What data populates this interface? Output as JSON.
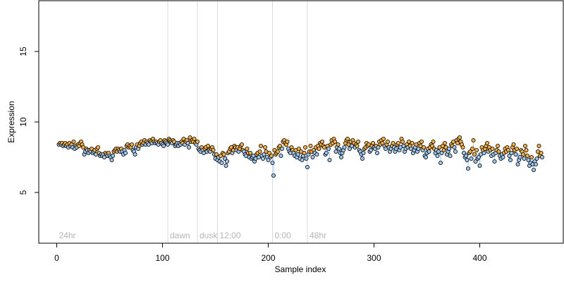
{
  "chart_data": {
    "type": "scatter",
    "title": "",
    "xlabel": "Sample index",
    "ylabel": "Expression",
    "xlim": [
      -17,
      479
    ],
    "ylim": [
      1.4,
      18.6
    ],
    "xticks": [
      0,
      100,
      200,
      300,
      400
    ],
    "yticks": [
      5,
      10,
      15
    ],
    "grid": false,
    "legend": "none",
    "annotations": [
      {
        "label": "24hr",
        "x": 0,
        "line": false
      },
      {
        "label": "dawn",
        "x": 105,
        "line": true
      },
      {
        "label": "dusk",
        "x": 133,
        "line": true
      },
      {
        "label": "12:00",
        "x": 152,
        "line": true
      },
      {
        "label": "0:00",
        "x": 204,
        "line": true
      },
      {
        "label": "48hr",
        "x": 237,
        "line": true
      }
    ],
    "colors": {
      "axis": "#000000",
      "annotation_text": "#b5b5b5",
      "annotation_line": "#d9d9d9",
      "positive_fill": "#f5b041",
      "negative_fill": "#9ec8f0",
      "positive_stem": "#f5c17a",
      "negative_stem": "#9ec8f0",
      "point_stroke": "#000000"
    },
    "series": [
      {
        "baseline_note": "stems drawn from local smoothed mean to each point",
        "x_start": 2,
        "x_step": 1,
        "values": [
          8.4,
          8.5,
          8.4,
          8.5,
          8.3,
          8.4,
          8.5,
          8.3,
          8.4,
          8.2,
          8.5,
          8.3,
          8.4,
          8.2,
          8.6,
          8.1,
          8.3,
          8.2,
          8.4,
          8.3,
          8.5,
          8.6,
          8.4,
          8.2,
          7.7,
          7.9,
          8.1,
          8.0,
          7.8,
          8.0,
          7.9,
          8.1,
          7.8,
          7.9,
          8.0,
          7.7,
          8.1,
          8.2,
          7.8,
          7.6,
          7.7,
          7.6,
          7.7,
          7.5,
          7.8,
          7.7,
          7.6,
          7.8,
          7.6,
          7.5,
          7.3,
          7.6,
          7.9,
          8.0,
          8.1,
          7.9,
          8.1,
          8.0,
          7.9,
          8.1,
          7.9,
          7.7,
          8.0,
          7.8,
          8.3,
          8.4,
          8.2,
          8.3,
          8.2,
          8.4,
          8.0,
          7.9,
          7.7,
          8.2,
          8.4,
          8.1,
          8.3,
          8.5,
          8.6,
          8.4,
          8.5,
          8.7,
          8.4,
          8.6,
          8.5,
          8.4,
          8.7,
          8.6,
          8.5,
          8.8,
          8.6,
          8.5,
          8.6,
          8.5,
          8.4,
          8.6,
          8.7,
          8.5,
          8.4,
          8.3,
          8.7,
          8.6,
          8.5,
          8.4,
          8.8,
          8.7,
          8.6,
          8.5,
          8.7,
          8.6,
          8.3,
          8.4,
          8.5,
          8.3,
          8.5,
          8.4,
          8.6,
          8.5,
          8.8,
          8.4,
          8.6,
          8.7,
          8.5,
          8.2,
          8.9,
          8.6,
          8.7,
          8.6,
          8.8,
          8.5,
          8.4,
          8.6,
          8.1,
          8.0,
          7.9,
          8.2,
          8.0,
          7.8,
          8.1,
          8.2,
          7.9,
          8.3,
          8.0,
          7.9,
          8.1,
          8.2,
          8.0,
          7.7,
          7.4,
          7.7,
          7.3,
          7.5,
          7.2,
          7.6,
          7.1,
          7.8,
          7.7,
          7.4,
          6.9,
          7.2,
          7.8,
          7.9,
          8.1,
          8.2,
          7.8,
          8.0,
          8.3,
          8.2,
          8.0,
          8.2,
          7.9,
          8.1,
          8.3,
          8.4,
          8.0,
          7.9,
          7.7,
          7.6,
          8.1,
          7.8,
          7.5,
          7.8,
          7.4,
          7.5,
          7.6,
          7.2,
          7.4,
          7.7,
          7.8,
          7.5,
          7.9,
          8.3,
          7.6,
          7.4,
          7.7,
          8.2,
          7.9,
          7.5,
          7.3,
          7.8,
          7.5,
          7.6,
          7.1,
          6.2,
          8.0,
          7.7,
          7.8,
          7.9,
          8.2,
          8.3,
          7.6,
          8.1,
          8.6,
          8.7,
          8.5,
          8.4,
          8.6,
          8.1,
          7.9,
          7.8,
          8.2,
          8.0,
          7.8,
          7.6,
          8.0,
          7.5,
          7.7,
          8.1,
          7.4,
          7.9,
          7.3,
          7.6,
          7.8,
          8.2,
          7.4,
          6.8,
          7.7,
          7.9,
          8.3,
          7.9,
          7.5,
          8.0,
          7.8,
          8.2,
          7.7,
          8.3,
          8.1,
          8.5,
          8.4,
          8.6,
          8.3,
          8.2,
          7.7,
          7.8,
          8.3,
          8.1,
          7.3,
          8.4,
          8.7,
          8.5,
          8.8,
          8.6,
          7.9,
          8.2,
          8.4,
          8.1,
          7.8,
          7.5,
          7.8,
          8.0,
          8.2,
          8.5,
          8.7,
          8.8,
          8.4,
          8.1,
          8.6,
          8.3,
          8.7,
          8.5,
          8.2,
          8.4,
          8.3,
          8.6,
          8.0,
          7.9,
          7.7,
          7.4,
          7.8,
          8.1,
          8.2,
          8.5,
          8.3,
          8.4,
          7.9,
          8.0,
          8.3,
          8.5,
          8.2,
          8.1,
          8.3,
          7.8,
          8.2,
          8.6,
          8.4,
          8.7,
          8.5,
          8.8,
          8.3,
          8.1,
          8.4,
          8.6,
          8.2,
          7.9,
          8.1,
          8.3,
          8.5,
          8.2,
          7.9,
          8.1,
          8.4,
          8.5,
          8.0,
          8.2,
          8.8,
          8.6,
          8.3,
          7.9,
          8.1,
          8.4,
          8.2,
          8.6,
          8.3,
          8.1,
          8.5,
          7.8,
          8.0,
          8.2,
          8.4,
          7.9,
          8.1,
          8.5,
          8.3,
          8.6,
          8.0,
          8.2,
          7.6,
          7.5,
          7.8,
          8.1,
          7.9,
          8.2,
          8.4,
          8.3,
          8.6,
          8.1,
          7.8,
          8.0,
          7.6,
          7.9,
          8.2,
          7.1,
          7.8,
          8.3,
          8.0,
          8.5,
          8.2,
          7.7,
          7.9,
          8.1,
          7.6,
          8.4,
          8.3,
          8.6,
          8.2,
          7.9,
          8.7,
          8.5,
          8.8,
          8.9,
          8.6,
          8.4,
          8.2,
          7.8,
          7.5,
          7.6,
          7.3,
          6.7,
          7.8,
          7.9,
          7.4,
          8.1,
          8.7,
          7.7,
          7.2,
          8.0,
          7.4,
          7.5,
          6.9,
          7.7,
          8.2,
          8.0,
          7.8,
          8.1,
          8.3,
          8.5,
          7.9,
          8.2,
          8.0,
          7.6,
          8.1,
          7.7,
          7.2,
          7.8,
          8.0,
          8.3,
          7.9,
          7.6,
          7.4,
          7.7,
          7.5,
          7.8,
          8.1,
          7.9,
          8.2,
          8.0,
          7.6,
          7.3,
          7.8,
          8.2,
          8.4,
          8.0,
          7.7,
          8.1,
          7.0,
          7.3,
          7.5,
          8.0,
          7.9,
          7.7,
          7.4,
          8.3,
          8.0,
          7.6,
          7.3,
          6.9,
          7.1,
          7.5,
          7.0,
          6.6,
          7.2,
          7.0,
          7.4,
          7.9,
          8.3,
          7.6,
          7.8,
          7.5
        ]
      }
    ]
  }
}
